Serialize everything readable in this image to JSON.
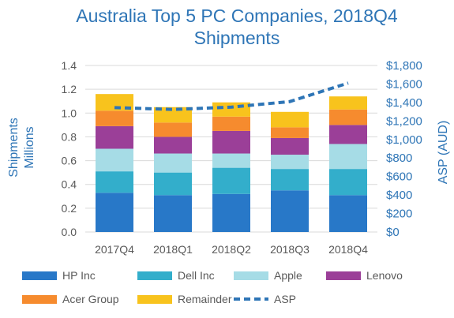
{
  "chart_data": {
    "type": "bar",
    "stacked": true,
    "title_line1": "Australia Top 5 PC Companies, 2018Q4",
    "title_line2": "Shipments",
    "ylabel_line1": "Shipments",
    "ylabel_line2": "Millions",
    "y2label": "ASP (AUD)",
    "categories": [
      "2017Q4",
      "2018Q1",
      "2018Q2",
      "2018Q3",
      "2018Q4"
    ],
    "ylim": [
      0,
      1.4
    ],
    "yticks": [
      "0.0",
      "0.2",
      "0.4",
      "0.6",
      "0.8",
      "1.0",
      "1.2",
      "1.4"
    ],
    "y2lim": [
      0,
      1800
    ],
    "y2ticks": [
      "$0",
      "$200",
      "$400",
      "$600",
      "$800",
      "$1,000",
      "$1,200",
      "$1,400",
      "$1,600",
      "$1,800"
    ],
    "grid": true,
    "legend_position": "bottom",
    "series": [
      {
        "name": "HP Inc",
        "color": "#2878C8",
        "values": [
          0.33,
          0.31,
          0.32,
          0.35,
          0.31
        ]
      },
      {
        "name": "Dell Inc",
        "color": "#33AECB",
        "values": [
          0.18,
          0.19,
          0.22,
          0.18,
          0.22
        ]
      },
      {
        "name": "Apple",
        "color": "#A6DCE6",
        "values": [
          0.19,
          0.16,
          0.12,
          0.12,
          0.21
        ]
      },
      {
        "name": "Lenovo",
        "color": "#9B3F98",
        "values": [
          0.19,
          0.14,
          0.19,
          0.14,
          0.16
        ]
      },
      {
        "name": "Acer Group",
        "color": "#F68B2E",
        "values": [
          0.13,
          0.12,
          0.12,
          0.09,
          0.13
        ]
      },
      {
        "name": "Remainder",
        "color": "#F8C31D",
        "values": [
          0.14,
          0.13,
          0.12,
          0.13,
          0.11
        ]
      }
    ],
    "line_series": {
      "name": "ASP",
      "color": "#2E75B6",
      "style": "dashed",
      "axis": "right",
      "values": [
        1345,
        1325,
        1350,
        1410,
        1610
      ]
    }
  }
}
